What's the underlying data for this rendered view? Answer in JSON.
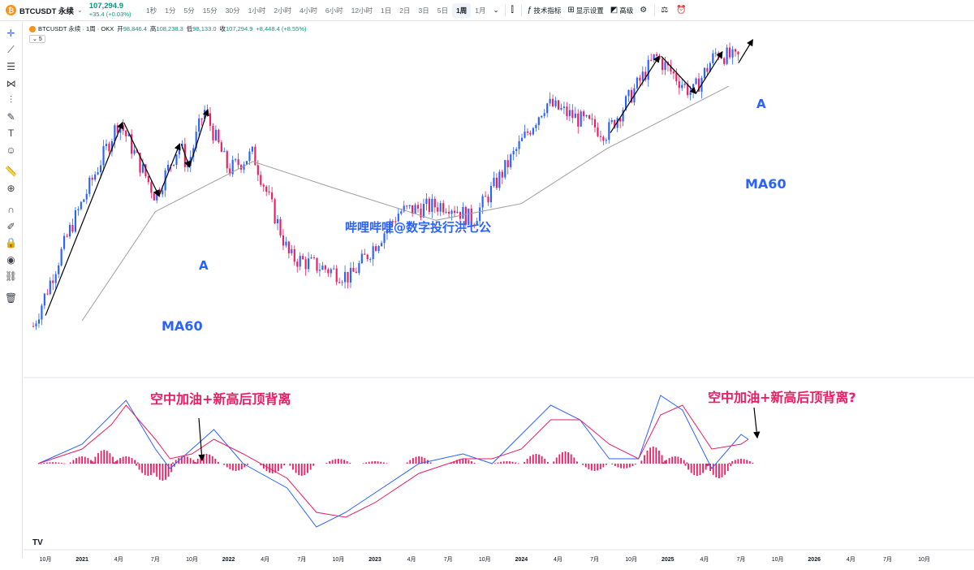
{
  "toolbar": {
    "symbol": "BTCUSDT 永续",
    "price": "107,294.9",
    "change": "+35.4 (+0.03%)",
    "intervals": [
      "1秒",
      "1分",
      "5分",
      "15分",
      "30分",
      "1小时",
      "2小时",
      "4小时",
      "6小时",
      "12小时",
      "1日",
      "2日",
      "3日",
      "5日",
      "1周",
      "1月"
    ],
    "active_interval": "1周",
    "indicators_label": "技术指标",
    "display_label": "显示设置",
    "advanced_label": "高级"
  },
  "legend": {
    "title": "BTCUSDT 永续 · 1周 · OKX",
    "open_label": "开",
    "open": "98,846.4",
    "high_label": "高",
    "high": "108,238.3",
    "low_label": "低",
    "low": "98,133.0",
    "close_label": "收",
    "close": "107,294.9",
    "change": "+8,448.4 (+8.55%)",
    "indicator_count": "5"
  },
  "colors": {
    "up": "#2962ff",
    "down": "#e91e63",
    "ma": "#9e9e9e",
    "macd_line": "#2962ff",
    "signal_line": "#e91e63",
    "histogram": "#e91e63",
    "annotation_blue": "#2962ff",
    "annotation_pink": "#e91e63"
  },
  "chart_data": [
    {
      "type": "candlestick",
      "title": "",
      "overlay_series": [
        "MA60"
      ],
      "x_ticks": [
        "10月",
        "2021",
        "4月",
        "7月",
        "10月",
        "2022",
        "4月",
        "7月",
        "10月",
        "2023",
        "4月",
        "7月",
        "10月",
        "2024",
        "4月",
        "7月",
        "10月",
        "2025",
        "4月",
        "7月",
        "10月",
        "2026",
        "4月",
        "7月",
        "10月"
      ],
      "price_path": [
        {
          "x": "2020-09",
          "y": 10500
        },
        {
          "x": "2020-12",
          "y": 24000
        },
        {
          "x": "2021-04",
          "y": 61000
        },
        {
          "x": "2021-07",
          "y": 32000
        },
        {
          "x": "2021-09",
          "y": 50000
        },
        {
          "x": "2021-09-20",
          "y": 41000
        },
        {
          "x": "2021-11",
          "y": 67000
        },
        {
          "x": "2022-01",
          "y": 40000
        },
        {
          "x": "2022-03",
          "y": 46000
        },
        {
          "x": "2022-06",
          "y": 19000
        },
        {
          "x": "2022-11",
          "y": 16000
        },
        {
          "x": "2023-03",
          "y": 28000
        },
        {
          "x": "2023-07",
          "y": 30000
        },
        {
          "x": "2023-09",
          "y": 26000
        },
        {
          "x": "2024-03",
          "y": 71000
        },
        {
          "x": "2024-08",
          "y": 55000
        },
        {
          "x": "2024-12",
          "y": 106000
        },
        {
          "x": "2025-03",
          "y": 77000
        },
        {
          "x": "2025-05",
          "y": 110000
        },
        {
          "x": "2025-06-20",
          "y": 103000
        },
        {
          "x": "2025-06-30",
          "y": 107294.9
        }
      ],
      "ma60_path": [
        {
          "x": "2021-01",
          "y": 11000
        },
        {
          "x": "2021-07",
          "y": 28000
        },
        {
          "x": "2022-03",
          "y": 43000
        },
        {
          "x": "2022-09",
          "y": 35000
        },
        {
          "x": "2023-06",
          "y": 26000
        },
        {
          "x": "2024-01",
          "y": 30000
        },
        {
          "x": "2024-08",
          "y": 48000
        },
        {
          "x": "2025-06",
          "y": 82000
        }
      ],
      "annotations": [
        {
          "text": "A",
          "where": "2021 second peak"
        },
        {
          "text": "MA60",
          "where": "below 2021 rally"
        },
        {
          "text": "哔哩哔哩@数字投行洪七公",
          "where": "center watermark"
        },
        {
          "text": "MA60",
          "where": "below 2025 rally"
        },
        {
          "text": "A",
          "where": "2025 second peak"
        }
      ]
    },
    {
      "type": "line",
      "title": "",
      "indicator": "MACD",
      "series": [
        {
          "name": "",
          "color": "#2962ff",
          "points": [
            [
              2020.7,
              0
            ],
            [
              2021.0,
              4
            ],
            [
              2021.2,
              10
            ],
            [
              2021.3,
              13
            ],
            [
              2021.5,
              3
            ],
            [
              2021.6,
              -1
            ],
            [
              2021.75,
              3
            ],
            [
              2021.9,
              7
            ],
            [
              2022.1,
              0
            ],
            [
              2022.4,
              -5
            ],
            [
              2022.6,
              -13
            ],
            [
              2022.8,
              -10
            ],
            [
              2023.0,
              -6
            ],
            [
              2023.3,
              0
            ],
            [
              2023.6,
              2
            ],
            [
              2023.8,
              0
            ],
            [
              2024.0,
              6
            ],
            [
              2024.2,
              12
            ],
            [
              2024.4,
              9
            ],
            [
              2024.6,
              1
            ],
            [
              2024.8,
              1
            ],
            [
              2024.95,
              14
            ],
            [
              2025.1,
              11
            ],
            [
              2025.3,
              -1
            ],
            [
              2025.5,
              6
            ],
            [
              2025.55,
              5
            ]
          ]
        },
        {
          "name": "",
          "color": "#e91e63",
          "points": [
            [
              2020.7,
              0
            ],
            [
              2021.0,
              3
            ],
            [
              2021.2,
              8
            ],
            [
              2021.3,
              12
            ],
            [
              2021.5,
              5
            ],
            [
              2021.6,
              1
            ],
            [
              2021.75,
              2
            ],
            [
              2021.9,
              5
            ],
            [
              2022.1,
              2
            ],
            [
              2022.4,
              -3
            ],
            [
              2022.6,
              -10
            ],
            [
              2022.8,
              -11
            ],
            [
              2023.0,
              -8
            ],
            [
              2023.3,
              -2
            ],
            [
              2023.6,
              1
            ],
            [
              2023.8,
              1
            ],
            [
              2024.0,
              3
            ],
            [
              2024.2,
              9
            ],
            [
              2024.4,
              9
            ],
            [
              2024.6,
              4
            ],
            [
              2024.8,
              1
            ],
            [
              2024.95,
              10
            ],
            [
              2025.1,
              12
            ],
            [
              2025.3,
              3
            ],
            [
              2025.5,
              4
            ],
            [
              2025.55,
              5
            ]
          ]
        }
      ],
      "histogram": [
        [
          2020.8,
          0.3
        ],
        [
          2021.0,
          1.5
        ],
        [
          2021.15,
          2.8
        ],
        [
          2021.3,
          1.5
        ],
        [
          2021.45,
          -2.5
        ],
        [
          2021.55,
          -3.5
        ],
        [
          2021.7,
          1.5
        ],
        [
          2021.85,
          2.0
        ],
        [
          2022.05,
          -1.5
        ],
        [
          2022.3,
          -2.0
        ],
        [
          2022.5,
          -2.5
        ],
        [
          2022.75,
          1.0
        ],
        [
          2023.0,
          0.5
        ],
        [
          2023.3,
          1.5
        ],
        [
          2023.6,
          1.0
        ],
        [
          2023.9,
          0.5
        ],
        [
          2024.1,
          2.0
        ],
        [
          2024.3,
          2.5
        ],
        [
          2024.5,
          -1.5
        ],
        [
          2024.7,
          -1.0
        ],
        [
          2024.9,
          3.5
        ],
        [
          2025.05,
          1.5
        ],
        [
          2025.2,
          -2.5
        ],
        [
          2025.35,
          -3.0
        ],
        [
          2025.5,
          1.0
        ]
      ],
      "annotations": [
        {
          "text": "空中加油+新高后顶背离",
          "where": "2021 pattern"
        },
        {
          "text": "空中加油+新高后顶背离?",
          "where": "2025 pattern"
        }
      ]
    }
  ]
}
